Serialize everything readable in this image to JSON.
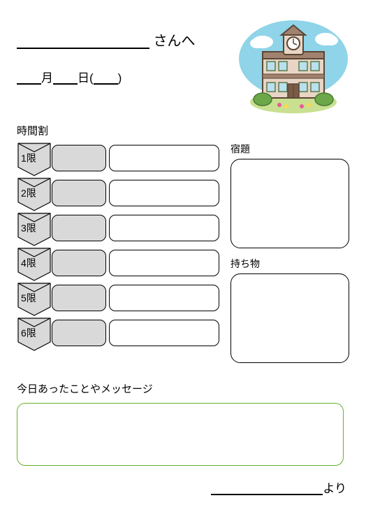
{
  "header": {
    "name_suffix": "さんへ",
    "month_label": "月",
    "day_label": "日(",
    "day_close": ")"
  },
  "timetable": {
    "title": "時間割",
    "periods": [
      {
        "label": "1限"
      },
      {
        "label": "2限"
      },
      {
        "label": "3限"
      },
      {
        "label": "4限"
      },
      {
        "label": "5限"
      },
      {
        "label": "6限"
      }
    ],
    "arrow_fill": "#d9d9d9",
    "arrow_stroke": "#000000",
    "box1_fill": "#d9d9d9",
    "box_border": "#000000",
    "box_radius": 9
  },
  "homework": {
    "title": "宿題"
  },
  "belongings": {
    "title": "持ち物"
  },
  "message": {
    "title": "今日あったことやメッセージ",
    "box_border": "#64b02e"
  },
  "footer": {
    "from_suffix": "より"
  },
  "illustration": {
    "sky": "#8fd4e8",
    "cloud": "#ffffff",
    "building": "#e8d5c5",
    "roof": "#a0826f",
    "window": "#b8e0ee",
    "window_frame": "#5a7a4a",
    "door": "#7a5c45",
    "ground": "#c8e090",
    "bush": "#6ca84a",
    "flower1": "#e85a9a",
    "flower2": "#ffd84a"
  }
}
